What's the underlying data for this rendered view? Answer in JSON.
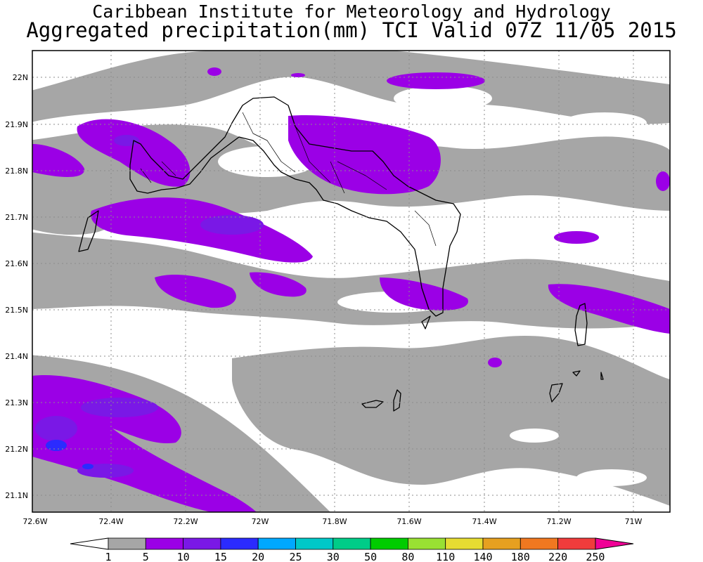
{
  "header": {
    "line1": "Caribbean Institute for Meteorology and Hydrology",
    "line2": "Aggregated precipitation(mm) TCI Valid 07Z 11/05 2015"
  },
  "map": {
    "region": "Turks and Caicos Islands",
    "lat_labels": [
      "22N",
      "21.9N",
      "21.8N",
      "21.7N",
      "21.6N",
      "21.5N",
      "21.4N",
      "21.3N",
      "21.2N",
      "21.1N"
    ],
    "lon_labels": [
      "72.6W",
      "72.4W",
      "72.2W",
      "72W",
      "71.8W",
      "71.6W",
      "71.4W",
      "71.2W",
      "71W"
    ],
    "gridlines": "dotted",
    "land_outline_color": "#000000"
  },
  "legend": {
    "levels": [
      "1",
      "5",
      "10",
      "15",
      "20",
      "25",
      "30",
      "50",
      "80",
      "110",
      "140",
      "180",
      "220",
      "250"
    ],
    "colors": [
      "#a6a6a6",
      "#9b00e6",
      "#7a18e6",
      "#2b2bff",
      "#00a8ff",
      "#00c8c8",
      "#00cc88",
      "#00cc00",
      "#99e033",
      "#e6dc32",
      "#e6a020",
      "#f07820",
      "#f03c3c",
      "#f00096"
    ],
    "under_color": "#ffffff"
  }
}
